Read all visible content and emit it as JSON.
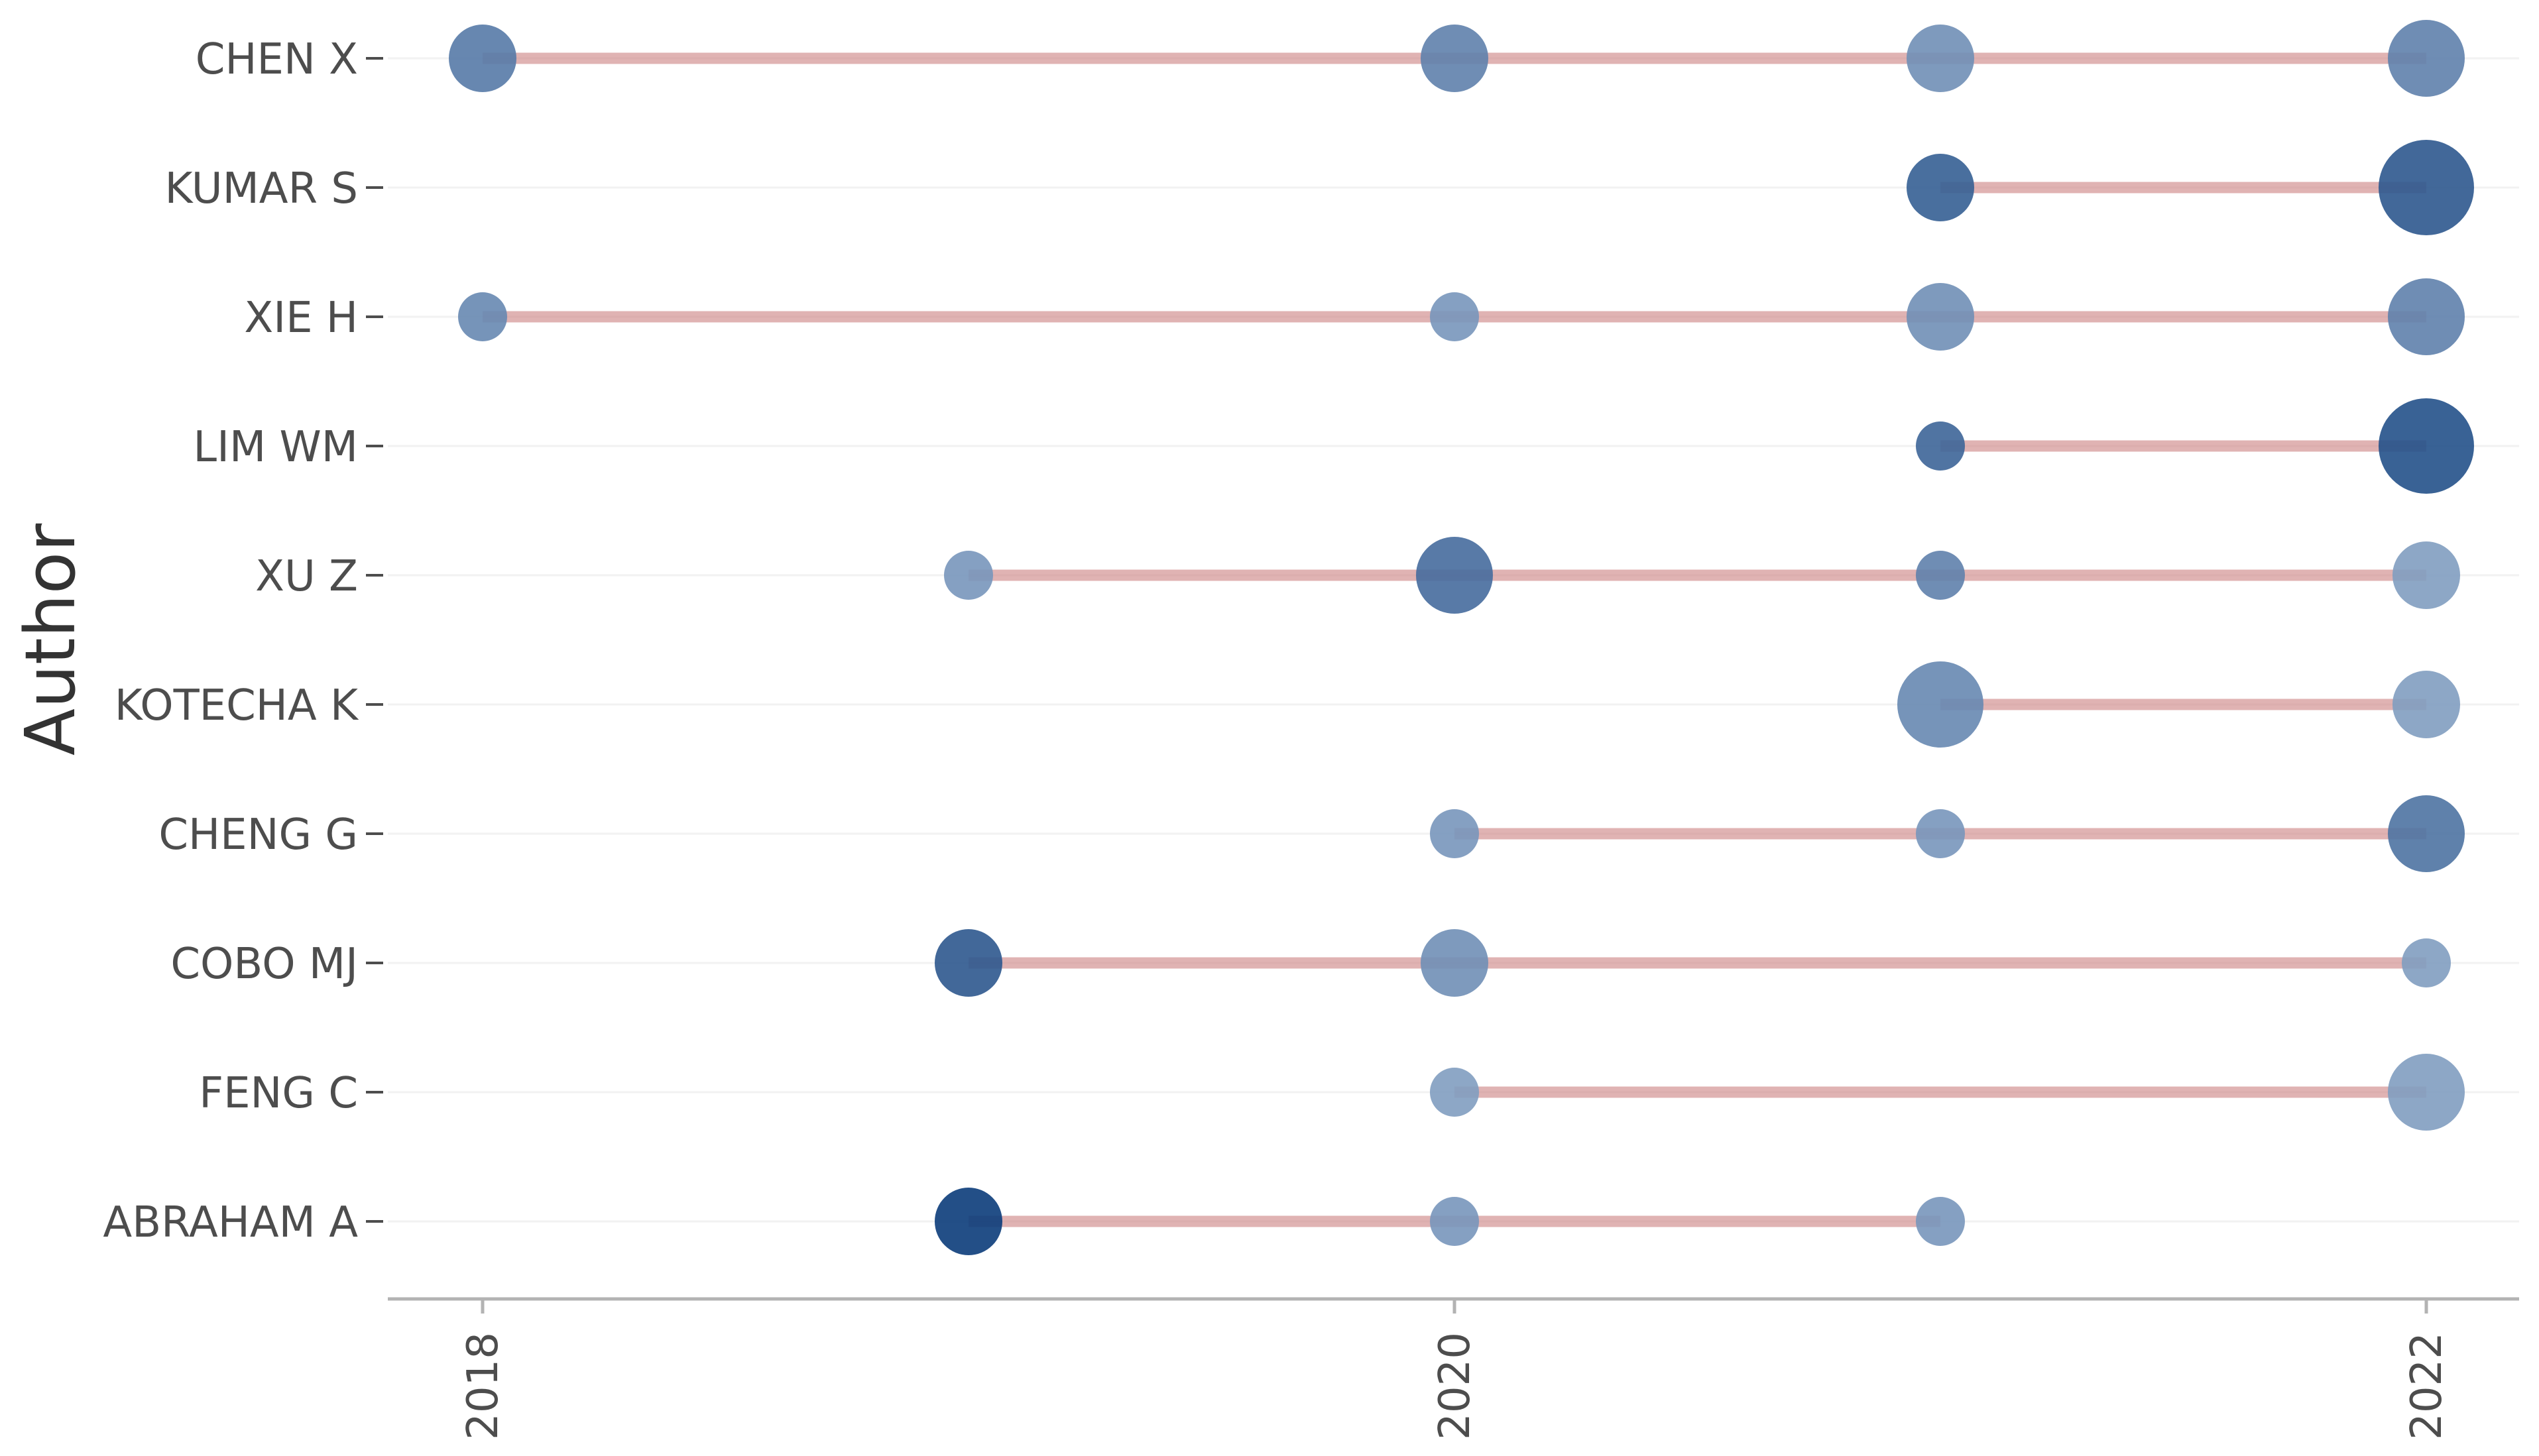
{
  "chart_data": {
    "type": "scatter",
    "ylabel": "Author",
    "xlabel": "",
    "x_ticks": [
      "2018",
      "2020",
      "2022"
    ],
    "xlim": [
      2017.8,
      2022.2
    ],
    "grid": "horizontal-faint",
    "colors": {
      "segment": "#cc8080",
      "bubble_light": "#b3c6de",
      "bubble_dark": "#0b3c7a",
      "axis": "#b3b3b3",
      "gridline": "#f2f2f2"
    },
    "authors": [
      {
        "name": "CHEN X",
        "points": [
          {
            "year": 2018,
            "size": 3,
            "shade": 0.55
          },
          {
            "year": 2020,
            "size": 3,
            "shade": 0.5
          },
          {
            "year": 2021,
            "size": 3,
            "shade": 0.4
          },
          {
            "year": 2022,
            "size": 4,
            "shade": 0.5
          }
        ]
      },
      {
        "name": "KUMAR S",
        "points": [
          {
            "year": 2021,
            "size": 3,
            "shade": 0.75
          },
          {
            "year": 2022,
            "size": 6,
            "shade": 0.8
          }
        ]
      },
      {
        "name": "XIE H",
        "points": [
          {
            "year": 2018,
            "size": 1,
            "shade": 0.45
          },
          {
            "year": 2020,
            "size": 1,
            "shade": 0.35
          },
          {
            "year": 2021,
            "size": 3,
            "shade": 0.4
          },
          {
            "year": 2022,
            "size": 4,
            "shade": 0.5
          }
        ]
      },
      {
        "name": "LIM WM",
        "points": [
          {
            "year": 2021,
            "size": 1,
            "shade": 0.7
          },
          {
            "year": 2022,
            "size": 6,
            "shade": 0.85
          }
        ]
      },
      {
        "name": "XU Z",
        "points": [
          {
            "year": 2019,
            "size": 1,
            "shade": 0.35
          },
          {
            "year": 2020,
            "size": 4,
            "shade": 0.65
          },
          {
            "year": 2021,
            "size": 1,
            "shade": 0.5
          },
          {
            "year": 2022,
            "size": 3,
            "shade": 0.3
          }
        ]
      },
      {
        "name": "KOTECHA K",
        "points": [
          {
            "year": 2021,
            "size": 5,
            "shade": 0.45
          },
          {
            "year": 2022,
            "size": 3,
            "shade": 0.3
          }
        ]
      },
      {
        "name": "CHENG G",
        "points": [
          {
            "year": 2020,
            "size": 1,
            "shade": 0.35
          },
          {
            "year": 2021,
            "size": 1,
            "shade": 0.35
          },
          {
            "year": 2022,
            "size": 4,
            "shade": 0.6
          }
        ]
      },
      {
        "name": "COBO MJ",
        "points": [
          {
            "year": 2019,
            "size": 3,
            "shade": 0.8
          },
          {
            "year": 2020,
            "size": 3,
            "shade": 0.4
          },
          {
            "year": 2022,
            "size": 1,
            "shade": 0.3
          }
        ]
      },
      {
        "name": "FENG C",
        "points": [
          {
            "year": 2020,
            "size": 1,
            "shade": 0.3
          },
          {
            "year": 2022,
            "size": 4,
            "shade": 0.3
          }
        ]
      },
      {
        "name": "ABRAHAM A",
        "points": [
          {
            "year": 2019,
            "size": 3,
            "shade": 1.0
          },
          {
            "year": 2020,
            "size": 1,
            "shade": 0.35
          },
          {
            "year": 2021,
            "size": 1,
            "shade": 0.35
          }
        ]
      }
    ]
  }
}
